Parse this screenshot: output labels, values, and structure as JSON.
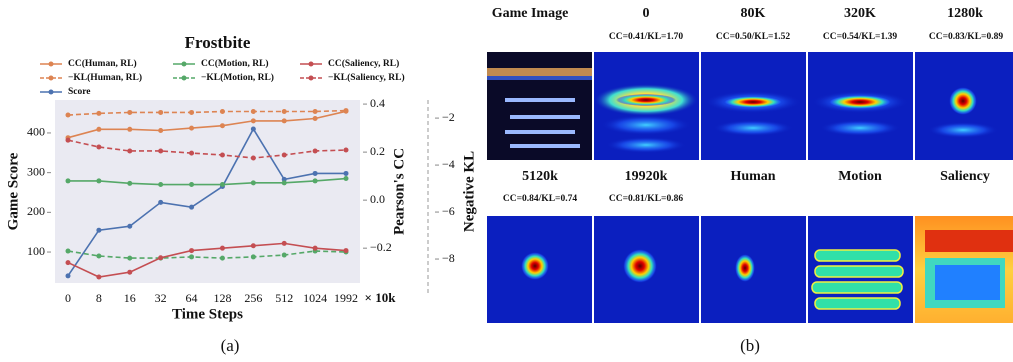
{
  "chart_data": {
    "type": "line",
    "title": "Frostbite",
    "categories": [
      "0",
      "8",
      "16",
      "32",
      "64",
      "128",
      "256",
      "512",
      "1024",
      "1992"
    ],
    "x_label": "Time Steps",
    "x_unit": "× 10k",
    "y_label": "Game Score",
    "y2_label": "Pearson's CC",
    "y3_label": "Negative KL",
    "ylim": [
      22,
      483
    ],
    "yticks": [
      100,
      200,
      300,
      400
    ],
    "y2lim": [
      -0.345,
      0.417
    ],
    "y2ticks": [
      {
        "value": -0.2,
        "label": "−0.2"
      },
      {
        "value": 0.0,
        "label": "0.0"
      },
      {
        "value": 0.2,
        "label": "0.2"
      },
      {
        "value": 0.4,
        "label": "0.4"
      }
    ],
    "y3lim": [
      -9.02,
      -1.23
    ],
    "y3ticks": [
      {
        "value": -8,
        "label": "−8"
      },
      {
        "value": -6,
        "label": "−6"
      },
      {
        "value": -4,
        "label": "−4"
      },
      {
        "value": -2,
        "label": "−2"
      }
    ],
    "series": [
      {
        "name": "CC(Human, RL)",
        "color": "#dd8452",
        "linestyle": "solid",
        "axis": "y2",
        "values": [
          0.26,
          0.295,
          0.295,
          0.29,
          0.3,
          0.31,
          0.33,
          0.33,
          0.34,
          0.37
        ]
      },
      {
        "name": "−KL(Human, RL)",
        "color": "#dd8452",
        "linestyle": "dashed",
        "axis": "y3",
        "values": [
          -1.87,
          -1.8,
          -1.76,
          -1.76,
          -1.76,
          -1.72,
          -1.72,
          -1.72,
          -1.72,
          -1.68
        ]
      },
      {
        "name": "Score",
        "color": "#4c72b0",
        "linestyle": "solid",
        "axis": "y",
        "values": [
          40,
          155,
          165,
          225,
          213,
          265,
          410,
          283,
          298,
          298
        ]
      },
      {
        "name": "CC(Motion, RL)",
        "color": "#55a868",
        "linestyle": "solid",
        "axis": "y2",
        "values": [
          0.08,
          0.08,
          0.07,
          0.065,
          0.065,
          0.065,
          0.072,
          0.072,
          0.08,
          0.09
        ]
      },
      {
        "name": "−KL(Motion, RL)",
        "color": "#55a868",
        "linestyle": "dashed",
        "axis": "y3",
        "values": [
          -7.66,
          -7.87,
          -7.96,
          -7.96,
          -7.91,
          -7.96,
          -7.91,
          -7.83,
          -7.66,
          -7.7
        ]
      },
      {
        "name": "CC(Saliency, RL)",
        "color": "#c44e52",
        "linestyle": "solid",
        "axis": "y2",
        "values": [
          -0.26,
          -0.32,
          -0.3,
          -0.24,
          -0.21,
          -0.2,
          -0.19,
          -0.18,
          -0.2,
          -0.21
        ]
      },
      {
        "name": "−KL(Saliency, RL)",
        "color": "#c44e52",
        "linestyle": "dashed",
        "axis": "y3",
        "values": [
          -2.94,
          -3.23,
          -3.4,
          -3.4,
          -3.49,
          -3.57,
          -3.7,
          -3.57,
          -3.4,
          -3.36
        ]
      }
    ],
    "grid": false,
    "background": "#eaeaf2"
  },
  "panel_b": {
    "row1_headers": [
      "Game Image",
      "0",
      "80K",
      "320K",
      "1280k"
    ],
    "row1_scores": [
      "CC=0.41/KL=1.70",
      "CC=0.50/KL=1.52",
      "CC=0.54/KL=1.39",
      "CC=0.83/KL=0.89"
    ],
    "row2_headers": [
      "5120k",
      "19920k",
      "Human",
      "Motion",
      "Saliency"
    ],
    "row2_scores": [
      "CC=0.84/KL=0.74",
      "CC=0.81/KL=0.86"
    ]
  },
  "captions": [
    "(a)",
    "(b)"
  ]
}
